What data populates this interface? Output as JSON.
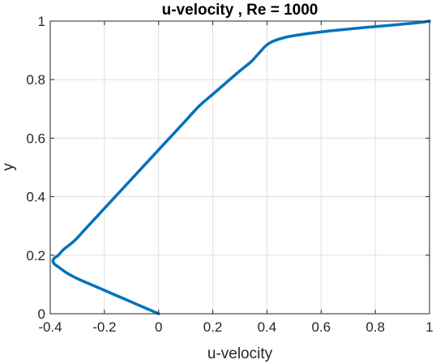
{
  "chart_data": {
    "type": "line",
    "title": "u-velocity , Re = 1000",
    "xlabel": "u-velocity",
    "ylabel": "y",
    "xlim": [
      -0.4,
      1
    ],
    "ylim": [
      0,
      1
    ],
    "x_ticks": [
      -0.4,
      -0.2,
      0,
      0.2,
      0.4,
      0.6,
      0.8,
      1
    ],
    "x_tick_labels": [
      "-0.4",
      "-0.2",
      "0",
      "0.2",
      "0.4",
      "0.6",
      "0.8",
      "1"
    ],
    "y_ticks": [
      0,
      0.2,
      0.4,
      0.6,
      0.8,
      1
    ],
    "y_tick_labels": [
      "0",
      "0.2",
      "0.4",
      "0.6",
      "0.8",
      "1"
    ],
    "grid": true,
    "box": true,
    "line_color": "#0072BD",
    "series": [
      {
        "x": [
          0.0,
          -0.05,
          -0.1,
          -0.15,
          -0.2,
          -0.25,
          -0.3,
          -0.34,
          -0.37,
          -0.385,
          -0.39,
          -0.385,
          -0.37,
          -0.35,
          -0.31,
          -0.27,
          -0.22,
          -0.17,
          -0.12,
          -0.06,
          0.0,
          0.05,
          0.1,
          0.15,
          0.2,
          0.25,
          0.3,
          0.34,
          0.365,
          0.38,
          0.395,
          0.42,
          0.47,
          0.55,
          0.65,
          0.75,
          0.85,
          0.93,
          0.98,
          1.0
        ],
        "y": [
          0.0,
          0.02,
          0.04,
          0.06,
          0.08,
          0.1,
          0.12,
          0.14,
          0.16,
          0.17,
          0.18,
          0.19,
          0.2,
          0.22,
          0.25,
          0.29,
          0.34,
          0.39,
          0.44,
          0.5,
          0.56,
          0.61,
          0.66,
          0.71,
          0.75,
          0.79,
          0.83,
          0.86,
          0.885,
          0.9,
          0.915,
          0.93,
          0.945,
          0.957,
          0.968,
          0.977,
          0.985,
          0.992,
          0.997,
          1.0
        ]
      }
    ]
  }
}
